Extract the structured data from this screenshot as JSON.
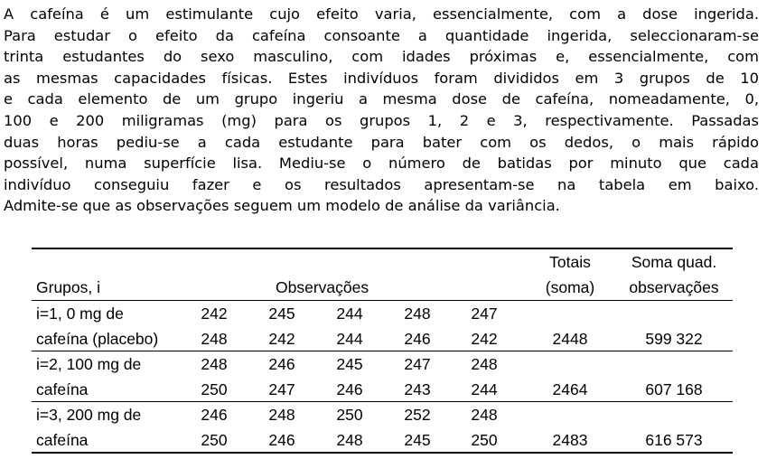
{
  "paragraph_lines": [
    "A cafeína é um estimulante cujo efeito varia, essencialmente, com a dose ingerida.",
    "Para estudar o efeito da cafeína consoante a quantidade ingerida, seleccionaram-se",
    "trinta estudantes do sexo masculino, com idades próximas e, essencialmente, com",
    "as mesmas capacidades físicas. Estes indivíduos foram divididos em 3 grupos de 10",
    "e cada elemento de um grupo ingeriu a mesma dose de cafeína, nomeadamente, 0,",
    "100 e 200 miligramas (mg) para os grupos 1, 2 e 3, respectivamente. Passadas",
    "duas horas pediu-se a cada estudante para bater com os dedos, o mais rápido",
    "possível, numa superfície lisa.  Mediu-se o número de batidas por minuto que cada",
    "indivíduo conseguiu fazer e os resultados apresentam-se na tabela em baixo.",
    "Admite-se que as observações seguem um modelo de análise da variância."
  ],
  "table": {
    "header": {
      "groups": "Grupos, i",
      "observations": "Observações",
      "totals_line1": "Totais",
      "totals_line2": "(soma)",
      "squares_line1": "Soma quad.",
      "squares_line2": "observações"
    },
    "groups": [
      {
        "label_line1": "i=1, 0 mg de",
        "label_line2": "cafeína (placebo)",
        "row1": [
          "242",
          "245",
          "244",
          "248",
          "247"
        ],
        "row2": [
          "248",
          "242",
          "244",
          "246",
          "242"
        ],
        "total": "2448",
        "sum_squares": "599 322"
      },
      {
        "label_line1": "i=2, 100 mg de",
        "label_line2": "cafeína",
        "row1": [
          "248",
          "246",
          "245",
          "247",
          "248"
        ],
        "row2": [
          "250",
          "247",
          "246",
          "243",
          "244"
        ],
        "total": "2464",
        "sum_squares": "607 168"
      },
      {
        "label_line1": "i=3, 200 mg de",
        "label_line2": "cafeína",
        "row1": [
          "246",
          "248",
          "250",
          "252",
          "248"
        ],
        "row2": [
          "250",
          "246",
          "248",
          "245",
          "250"
        ],
        "total": "2483",
        "sum_squares": "616 573"
      }
    ]
  }
}
